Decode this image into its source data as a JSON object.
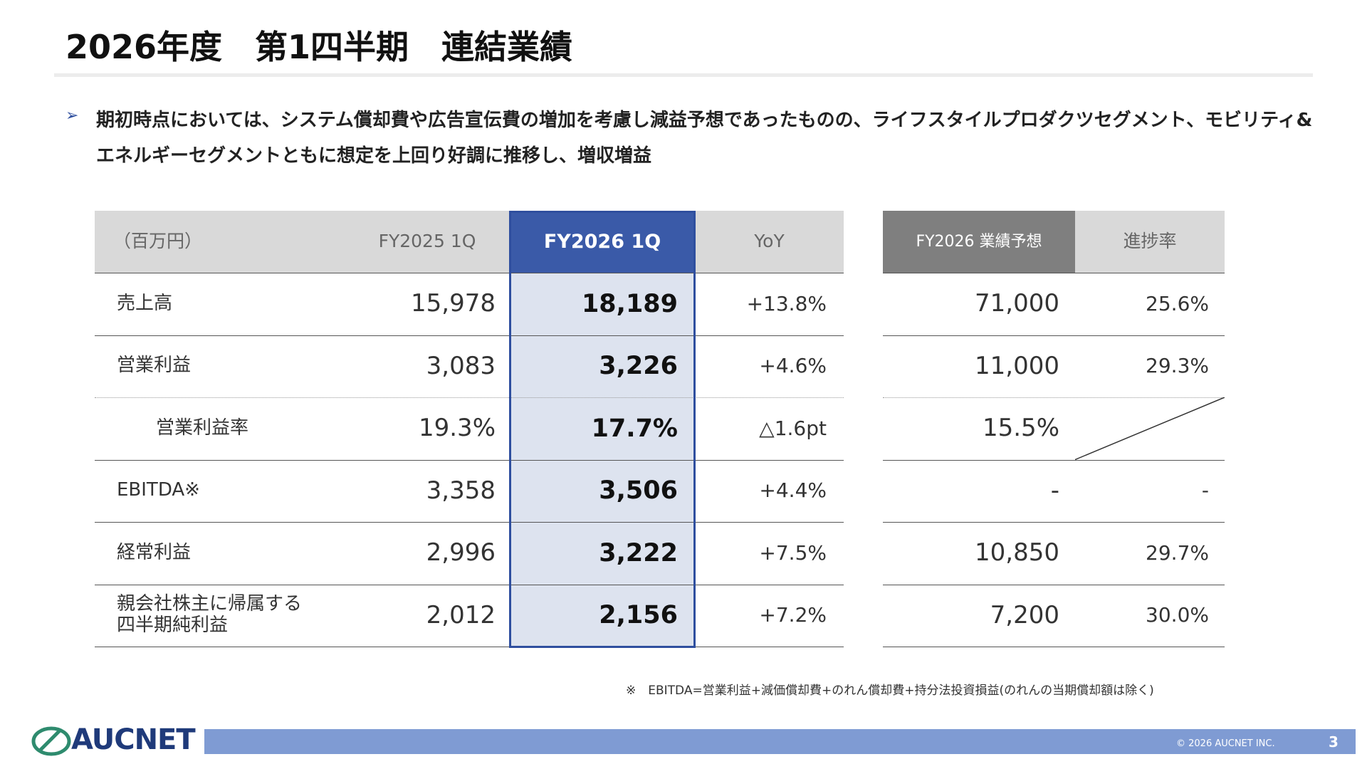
{
  "header": {
    "title": "2026年度　第1四半期　連結業績"
  },
  "summary": "期初時点においては、システム償却費や広告宣伝費の増加を考慮し減益予想であったものの、ライフスタイルプロダクツセグメント、モビリティ&エネルギーセグメントともに想定を上回り好調に推移し、増収増益",
  "table": {
    "columns": [
      "（百万円）",
      "FY2025 1Q",
      "FY2026 1Q",
      "YoY"
    ],
    "rows": [
      [
        "売上高",
        "15,978",
        "18,189",
        "+13.8%"
      ],
      [
        "営業利益",
        "3,083",
        "3,226",
        "+4.6%"
      ],
      [
        "営業利益率",
        "19.3%",
        "17.7%",
        "△1.6pt"
      ],
      [
        "EBITDA※",
        "3,358",
        "3,506",
        "+4.4%"
      ],
      [
        "経常利益",
        "2,996",
        "3,222",
        "+7.5%"
      ],
      [
        "親会社株主に帰属する\n四半期純利益",
        "2,012",
        "2,156",
        "+7.2%"
      ]
    ]
  },
  "forecast": {
    "columns": [
      "FY2026 業績予想",
      "進捗率"
    ],
    "rows": [
      [
        "71,000",
        "25.6%"
      ],
      [
        "11,000",
        "29.3%"
      ],
      [
        "15.5%"
      ],
      [
        "-",
        "-"
      ],
      [
        "10,850",
        "29.7%"
      ],
      [
        "7,200",
        "30.0%"
      ]
    ]
  },
  "footnote": "※　EBITDA=営業利益+減価償却費+のれん償却費+持分法投資損益(のれんの当期償却額は除く)",
  "footer": {
    "logo": "AUCNET",
    "copyright": "© 2026 AUCNET INC.",
    "page": "3"
  }
}
